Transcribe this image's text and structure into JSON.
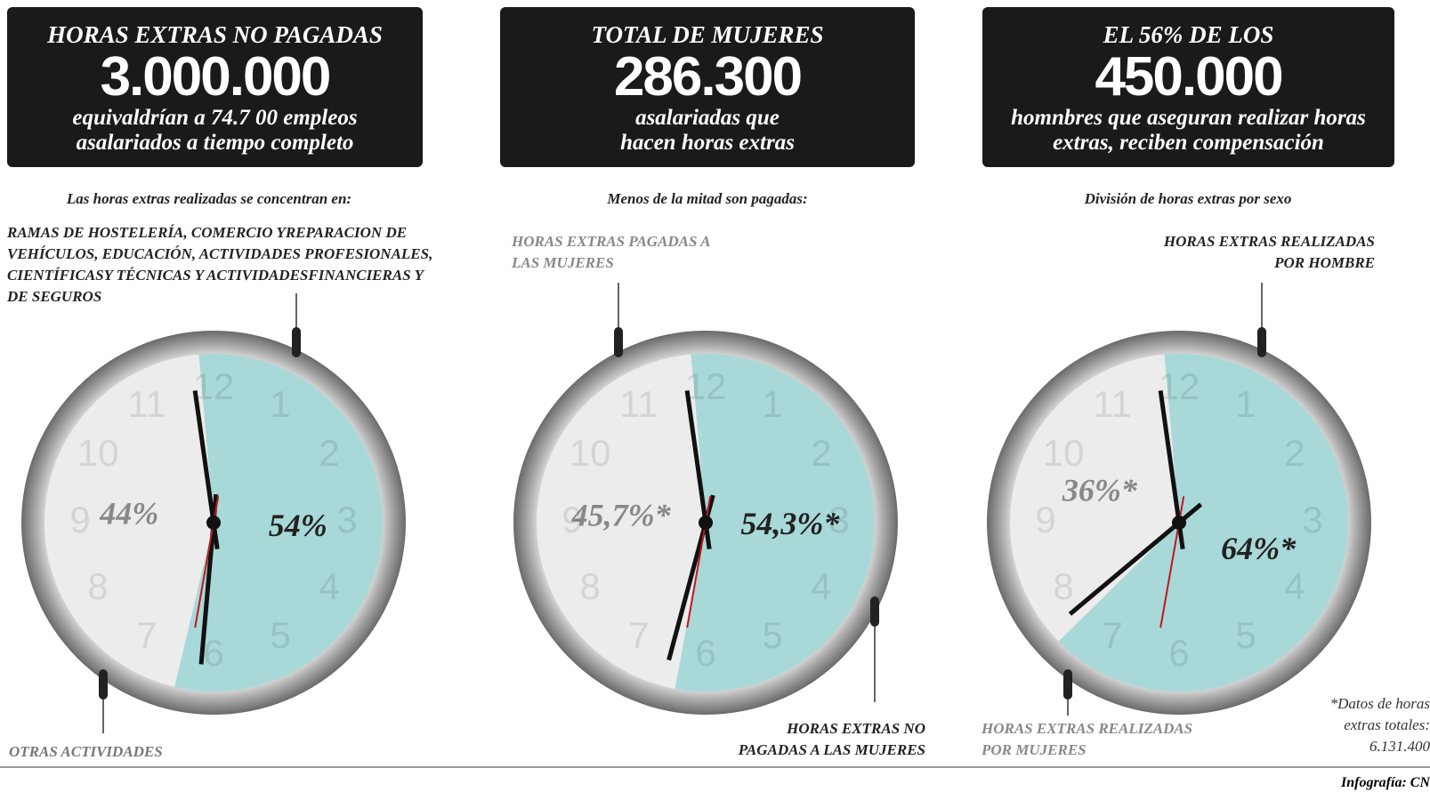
{
  "panels": [
    {
      "kicker": "HORAS EXTRAS NO PAGADAS",
      "number": "3.000.000",
      "text": "equivaldrían a  74.7 00 empleos asalariados a tiempo completo"
    },
    {
      "kicker": "TOTAL DE MUJERES",
      "number": "286.300",
      "text": "asalariadas que hacen horas extras"
    },
    {
      "kicker": "EL 56% DE LOS",
      "number": "450.000",
      "text": "homnbres que aseguran realizar horas extras, reciben compensación"
    }
  ],
  "clock_numerals": [
    "12",
    "1",
    "2",
    "3",
    "4",
    "5",
    "6",
    "7",
    "8",
    "9",
    "10",
    "11"
  ],
  "chart_data": [
    {
      "type": "pie",
      "title": "Las horas extras realizadas se concentran en:",
      "categories": [
        "RAMAS DE HOSTELERÍA, COMERCIO YREPARACION DE VEHÍCULOS, EDUCACIÓN, ACTIVIDADES PROFESIONALES, CIENTÍFICASY TÉCNICAS Y ACTIVIDADESFINANCIERAS Y DE SEGUROS",
        "OTRAS ACTIVIDADES"
      ],
      "values": [
        54,
        44
      ],
      "value_labels": [
        "54%",
        "44%"
      ],
      "colors": [
        "#a9d8d8",
        "#ececec"
      ]
    },
    {
      "type": "pie",
      "title": "Menos de la mitad son pagadas:",
      "categories": [
        "HORAS EXTRAS NO PAGADAS A LAS MUJERES",
        "HORAS EXTRAS PAGADAS A LAS MUJERES"
      ],
      "values": [
        54.3,
        45.7
      ],
      "value_labels": [
        "54,3%*",
        "45,7%*"
      ],
      "colors": [
        "#a9d8d8",
        "#ececec"
      ]
    },
    {
      "type": "pie",
      "title": "División de horas extras por sexo",
      "categories": [
        "HORAS EXTRAS REALIZADAS POR HOMBRE",
        "HORAS EXTRAS REALIZADAS POR MUJERES"
      ],
      "values": [
        64,
        36
      ],
      "value_labels": [
        "64%*",
        "36%*"
      ],
      "colors": [
        "#a9d8d8",
        "#ececec"
      ]
    }
  ],
  "footnote": "*Datos de horas extras totales: 6.131.400",
  "credit": "Infografía: CN"
}
